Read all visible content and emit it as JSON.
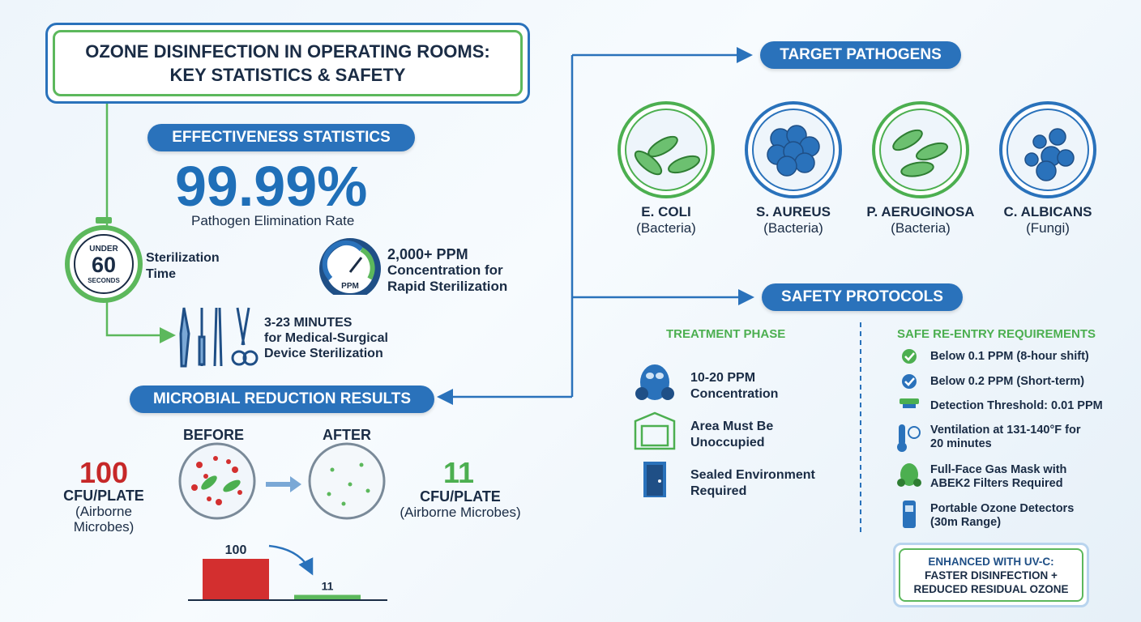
{
  "header": {
    "title_line1": "OZONE DISINFECTION IN OPERATING ROOMS:",
    "title_line2": "KEY STATISTICS & SAFETY"
  },
  "effectiveness": {
    "heading": "EFFECTIVENESS STATISTICS",
    "rate": "99.99%",
    "rate_label": "Pathogen Elimination Rate",
    "timer_top": "UNDER",
    "timer_number": "60",
    "timer_bottom": "SECONDS",
    "timer_label": [
      "Sterilization",
      "Time"
    ],
    "gauge_unit": "PPM",
    "concentration": "2,000+ PPM",
    "concentration_label": [
      "Concentration for",
      "Rapid Sterilization"
    ],
    "device_time": "3-23 MINUTES",
    "device_label": [
      "for Medical-Surgical",
      "Device Sterilization"
    ]
  },
  "microbial": {
    "heading": "MICROBIAL REDUCTION RESULTS",
    "before_label": "BEFORE",
    "after_label": "AFTER",
    "before_value": "100",
    "before_unit": "CFU/PLATE",
    "before_note": [
      "(Airborne",
      "Microbes)"
    ],
    "after_value": "11",
    "after_unit": "CFU/PLATE",
    "after_note": "(Airborne Microbes)",
    "bars": {
      "values": [
        100,
        11
      ],
      "colors": [
        "#d32f2f",
        "#5cb85c"
      ]
    }
  },
  "pathogens": {
    "heading": "TARGET PATHOGENS",
    "items": [
      {
        "name": "E. COLI",
        "kind": "(Bacteria)"
      },
      {
        "name": "S. AUREUS",
        "kind": "(Bacteria)"
      },
      {
        "name": "P. AERUGINOSA",
        "kind": "(Bacteria)"
      },
      {
        "name": "C. ALBICANS",
        "kind": "(Fungi)"
      }
    ]
  },
  "safety": {
    "heading": "SAFETY PROTOCOLS",
    "treatment": {
      "heading": "TREATMENT PHASE",
      "items": [
        [
          "10-20 PPM",
          "Concentration"
        ],
        [
          "Area Must Be",
          "Unoccupied"
        ],
        [
          "Sealed Environment",
          "Required"
        ]
      ]
    },
    "reentry": {
      "heading": "SAFE RE-ENTRY REQUIREMENTS",
      "items": [
        [
          "Below 0.1 PPM (8-hour shift)"
        ],
        [
          "Below 0.2 PPM (Short-term)"
        ],
        [
          "Detection Threshold: 0.01 PPM"
        ],
        [
          "Ventilation at 131-140°F for",
          "20 minutes"
        ],
        [
          "Full-Face Gas Mask with",
          "ABEK2 Filters Required"
        ],
        [
          "Portable Ozone Detectors",
          "(30m Range)"
        ]
      ]
    },
    "uvc": [
      "ENHANCED WITH UV-C:",
      "FASTER DISINFECTION +",
      "REDUCED RESIDUAL OZONE"
    ]
  }
}
